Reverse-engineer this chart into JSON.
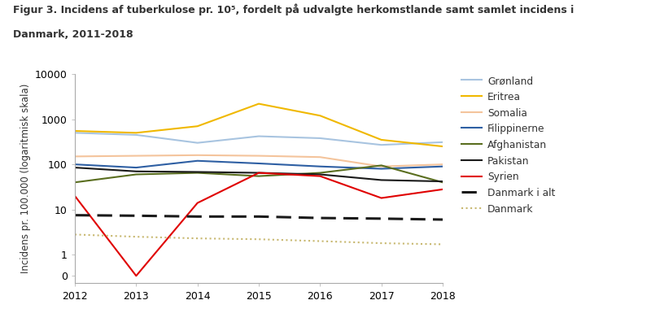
{
  "title_line1": "Figur 3. Incidens af tuberkulose pr. 10⁵, fordelt på udvalgte herkomstlande samt samlet incidens i",
  "title_line2": "Danmark, 2011-2018",
  "ylabel": "Incidens pr. 100.000 (logaritmisk skala)",
  "years": [
    2012,
    2013,
    2014,
    2015,
    2016,
    2017,
    2018
  ],
  "Gronland_values": [
    500,
    450,
    300,
    420,
    380,
    270,
    310
  ],
  "Gronland_color": "#a8c4e0",
  "Eritrea_values": [
    550,
    500,
    700,
    2200,
    1200,
    350,
    250
  ],
  "Eritrea_color": "#f0b800",
  "Somalia_values": [
    150,
    155,
    160,
    155,
    145,
    90,
    100
  ],
  "Somalia_color": "#f4c49c",
  "Filippinerne_values": [
    100,
    85,
    120,
    105,
    90,
    80,
    90
  ],
  "Filippinerne_color": "#2e5fa3",
  "Afghanistan_values": [
    40,
    60,
    65,
    55,
    65,
    95,
    40
  ],
  "Afghanistan_color": "#5a6e1f",
  "Pakistan_values": [
    85,
    70,
    68,
    65,
    60,
    45,
    42
  ],
  "Pakistan_color": "#1a1a1a",
  "Syrien_values": [
    20,
    0,
    14,
    65,
    55,
    18,
    28
  ],
  "Syrien_color": "#e00000",
  "DanmarkIAlt_values": [
    7.5,
    7.3,
    7.0,
    7.0,
    6.5,
    6.3,
    6.0
  ],
  "DanmarkIAlt_color": "#1a1a1a",
  "Danmark_values": [
    2.8,
    2.5,
    2.3,
    2.2,
    2.0,
    1.8,
    1.7
  ],
  "Danmark_color": "#c8b870",
  "lw": 1.5,
  "figwidth": 8.0,
  "figheight": 3.96,
  "dpi": 100
}
